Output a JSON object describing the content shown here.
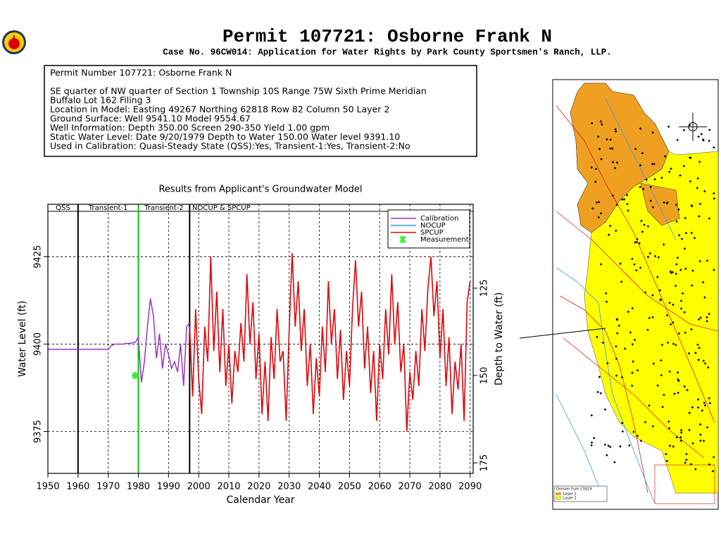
{
  "header": {
    "title": "Permit  107721:   Osborne  Frank  N",
    "subtitle": "Case No. 96CW014: Application for Water Rights by Park County Sportsmen's Ranch, LLP."
  },
  "info": {
    "lines": [
      "Permit Number 107721: Osborne Frank N",
      "SE quarter of NW quarter of Section 1 Township 10S Range 75W Sixth Prime Meridian",
      "Buffalo Lot 162 Filing 3",
      "Location in Model: Easting 49267 Northing   62818 Row   82 Column 50 Layer 2",
      "Ground Surface: Well   9541.10 Model   9554.67",
      "Well Information: Depth    350.00 Screen 290-350 Yield       1.00 gpm",
      "Static Water Level: Date   9/20/1979 Depth to Water    150.00 Water level   9391.10",
      "Used in Calibration: Quasi-Steady State (QSS):Yes, Transient-1:Yes, Transient-2:No"
    ]
  },
  "map": {
    "legend": [
      "Domain from CSS19",
      "Layer 1",
      "Layer 2"
    ]
  },
  "chart_data": {
    "type": "line",
    "title": "Results from Applicant's Groundwater Model",
    "xlabel": "Calendar Year",
    "ylabel": "Water Level (ft)",
    "y2label": "Depth to Water (ft)",
    "xlim": [
      1950,
      2091
    ],
    "xticks": [
      1950,
      1960,
      1970,
      1980,
      1990,
      2000,
      2010,
      2020,
      2030,
      2040,
      2050,
      2060,
      2070,
      2080,
      2090
    ],
    "ylim": [
      9363,
      9440
    ],
    "yticks": [
      9375,
      9400,
      9425
    ],
    "y2lim": [
      178,
      101
    ],
    "y2ticks": [
      125,
      150,
      175
    ],
    "grid": true,
    "legend": "upper right",
    "periods": [
      {
        "label": "QSS",
        "start": 1950,
        "end": 1960,
        "color": "#000000"
      },
      {
        "label": "Transient-1",
        "start": 1960,
        "end": 1980,
        "color": "#00cc00"
      },
      {
        "label": "Transient-2",
        "start": 1980,
        "end": 1997,
        "color": "#000000"
      },
      {
        "label": "NOCUP  & SPCUP",
        "start": 1997,
        "end": 2091,
        "color": "#000000"
      }
    ],
    "x": [
      1950,
      1951,
      1952,
      1953,
      1954,
      1955,
      1956,
      1957,
      1958,
      1959,
      1960,
      1961,
      1962,
      1963,
      1964,
      1965,
      1966,
      1967,
      1968,
      1969,
      1970,
      1971,
      1972,
      1973,
      1974,
      1975,
      1976,
      1977,
      1978,
      1979,
      1980,
      1981,
      1982,
      1983,
      1984,
      1985,
      1986,
      1987,
      1988,
      1989,
      1990,
      1991,
      1992,
      1993,
      1994,
      1995,
      1996,
      1997,
      1998,
      1999,
      2000,
      2001,
      2002,
      2003,
      2004,
      2005,
      2006,
      2007,
      2008,
      2009,
      2010,
      2011,
      2012,
      2013,
      2014,
      2015,
      2016,
      2017,
      2018,
      2019,
      2020,
      2021,
      2022,
      2023,
      2024,
      2025,
      2026,
      2027,
      2028,
      2029,
      2030,
      2031,
      2032,
      2033,
      2034,
      2035,
      2036,
      2037,
      2038,
      2039,
      2040,
      2041,
      2042,
      2043,
      2044,
      2045,
      2046,
      2047,
      2048,
      2049,
      2050,
      2051,
      2052,
      2053,
      2054,
      2055,
      2056,
      2057,
      2058,
      2059,
      2060,
      2061,
      2062,
      2063,
      2064,
      2065,
      2066,
      2067,
      2068,
      2069,
      2070,
      2071,
      2072,
      2073,
      2074,
      2075,
      2076,
      2077,
      2078,
      2079,
      2080,
      2081,
      2082,
      2083,
      2084,
      2085,
      2086,
      2087,
      2088,
      2089,
      2090
    ],
    "series": [
      {
        "name": "Calibration",
        "color": "#9933cc",
        "values": [
          9398.5,
          9398.5,
          9398.5,
          9398.5,
          9398.5,
          9398.5,
          9398.5,
          9398.5,
          9398.5,
          9398.5,
          9398.5,
          9398.5,
          9398.5,
          9398.5,
          9398.5,
          9398.5,
          9398.5,
          9398.5,
          9398.5,
          9398.5,
          9398.5,
          9399.5,
          9400,
          9400,
          9400,
          9400,
          9400.2,
          9400.2,
          9400.4,
          9400.5,
          9402,
          9389,
          9395,
          9405,
          9413,
          9408,
          9396,
          9403,
          9393,
          9400,
          9397,
          9393,
          9395,
          9392,
          9400,
          9388,
          9405,
          9406,
          null,
          null,
          null,
          null,
          null,
          null,
          null,
          null,
          null,
          null,
          null,
          null,
          null,
          null,
          null,
          null,
          null,
          null,
          null,
          null,
          null,
          null,
          null,
          null,
          null,
          null,
          null,
          null,
          null,
          null,
          null,
          null,
          null,
          null,
          null,
          null,
          null,
          null,
          null,
          null,
          null,
          null,
          null,
          null,
          null,
          null,
          null,
          null,
          null,
          null,
          null,
          null,
          null,
          null,
          null,
          null,
          null,
          null,
          null,
          null,
          null,
          null,
          null,
          null,
          null,
          null,
          null,
          null,
          null,
          null,
          null,
          null,
          null,
          null,
          null,
          null,
          null,
          null,
          null,
          null,
          null,
          null,
          null,
          null,
          null,
          null,
          null,
          null,
          null,
          null,
          null,
          null,
          null
        ]
      },
      {
        "name": "NOCUP",
        "color": "#3399cc",
        "values": [
          null,
          null,
          null,
          null,
          null,
          null,
          null,
          null,
          null,
          null,
          null,
          null,
          null,
          null,
          null,
          null,
          null,
          null,
          null,
          null,
          null,
          null,
          null,
          null,
          null,
          null,
          null,
          null,
          null,
          null,
          null,
          null,
          null,
          null,
          null,
          null,
          null,
          null,
          null,
          null,
          null,
          null,
          null,
          null,
          null,
          null,
          null,
          9405,
          9385,
          9410,
          9390,
          9380,
          9405,
          9395,
          9425,
          9398,
          9415,
          9392,
          9410,
          9388,
          9400,
          9383,
          9398,
          9392,
          9406,
          9395,
          9420,
          9400,
          9412,
          9390,
          9403,
          9380,
          9395,
          9378,
          9402,
          9390,
          9410,
          9395,
          9398,
          9378,
          9404,
          9426,
          9405,
          9418,
          9398,
          9410,
          9388,
          9400,
          9380,
          9396,
          9385,
          9405,
          9392,
          9418,
          9400,
          9410,
          9390,
          9404,
          9384,
          9398,
          9388,
          9410,
          9424,
          9405,
          9415,
          9393,
          9405,
          9386,
          9398,
          9378,
          9400,
          9390,
          9410,
          9397,
          9420,
          9400,
          9412,
          9392,
          9400,
          9375,
          9392,
          9384,
          9398,
          9388,
          9410,
          9398,
          9416,
          9425,
          9408,
          9418,
          9396,
          9410,
          9388,
          9402,
          9380,
          9395,
          9387,
          9400,
          9378,
          9412,
          9418
        ]
      },
      {
        "name": "SPCUP",
        "color": "#ee0000",
        "values": [
          null,
          null,
          null,
          null,
          null,
          null,
          null,
          null,
          null,
          null,
          null,
          null,
          null,
          null,
          null,
          null,
          null,
          null,
          null,
          null,
          null,
          null,
          null,
          null,
          null,
          null,
          null,
          null,
          null,
          null,
          null,
          null,
          null,
          null,
          null,
          null,
          null,
          null,
          null,
          null,
          null,
          null,
          null,
          null,
          null,
          null,
          null,
          9405,
          9385,
          9410,
          9390,
          9380,
          9405,
          9395,
          9425,
          9398,
          9415,
          9392,
          9410,
          9388,
          9400,
          9383,
          9398,
          9392,
          9406,
          9395,
          9420,
          9400,
          9412,
          9390,
          9403,
          9380,
          9395,
          9378,
          9402,
          9390,
          9410,
          9395,
          9398,
          9378,
          9404,
          9426,
          9405,
          9418,
          9398,
          9410,
          9388,
          9400,
          9380,
          9396,
          9385,
          9405,
          9392,
          9418,
          9400,
          9410,
          9390,
          9404,
          9384,
          9398,
          9388,
          9410,
          9424,
          9405,
          9415,
          9393,
          9405,
          9386,
          9398,
          9378,
          9400,
          9390,
          9410,
          9397,
          9420,
          9400,
          9412,
          9392,
          9400,
          9375,
          9392,
          9384,
          9398,
          9388,
          9410,
          9398,
          9416,
          9425,
          9408,
          9418,
          9396,
          9410,
          9388,
          9402,
          9380,
          9395,
          9387,
          9400,
          9378,
          9412,
          9418
        ]
      }
    ],
    "measurements": {
      "name": "Measurement",
      "color": "#33ee33",
      "x": [
        1979
      ],
      "values": [
        9391
      ]
    }
  }
}
